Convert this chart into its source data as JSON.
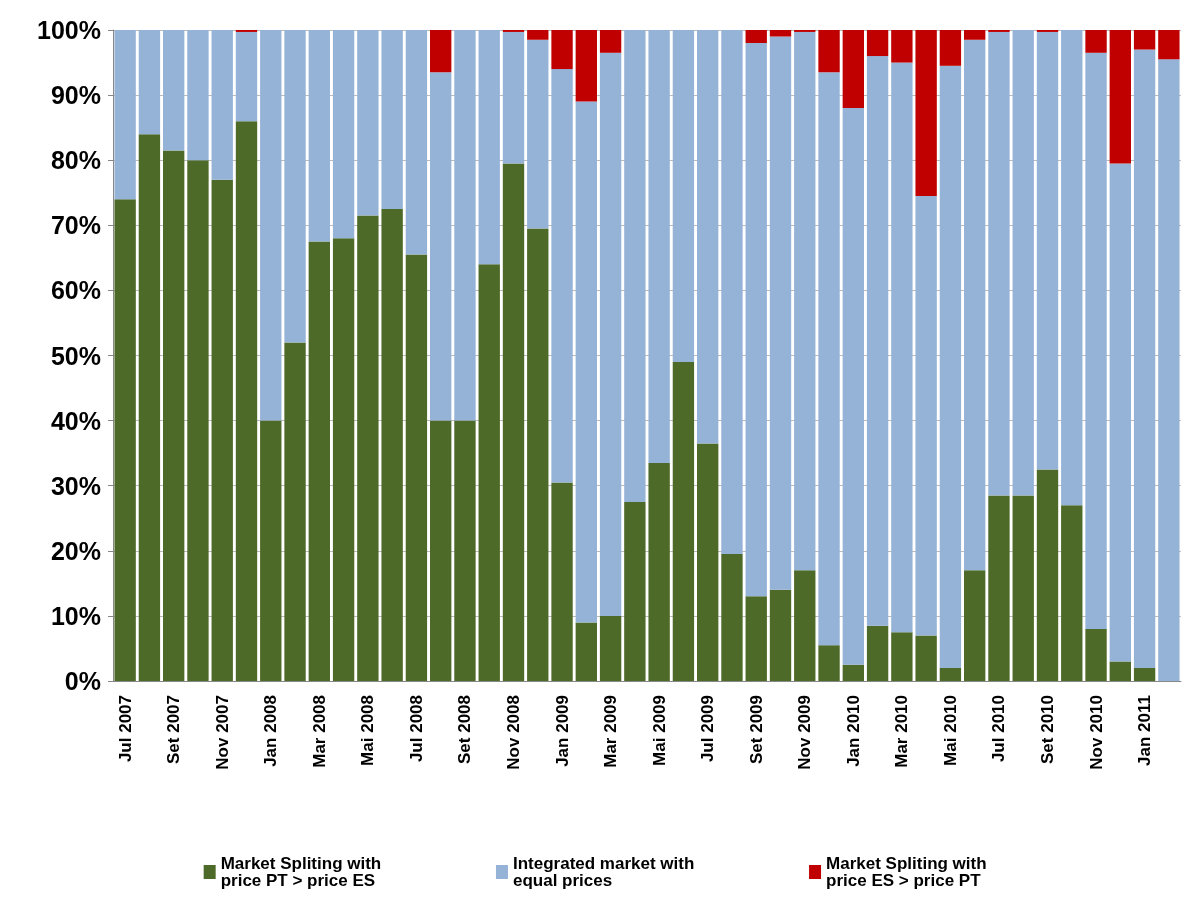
{
  "chart_data": {
    "type": "bar",
    "stacked": true,
    "categories": [
      "Jul 2007",
      null,
      "Set 2007",
      null,
      "Nov 2007",
      null,
      "Jan 2008",
      null,
      "Mar 2008",
      null,
      "Mai 2008",
      null,
      "Jul 2008",
      null,
      "Set 2008",
      null,
      "Nov 2008",
      null,
      "Jan 2009",
      null,
      "Mar 2009",
      null,
      "Mai 2009",
      null,
      "Jul 2009",
      null,
      "Set 2009",
      null,
      "Nov 2009",
      null,
      "Jan 2010",
      null,
      "Mar 2010",
      null,
      "Mai 2010",
      null,
      "Jul 2010",
      null,
      "Set 2010",
      null,
      "Nov 2010",
      null,
      "Jan 2011",
      null
    ],
    "series": [
      {
        "name": "Market Spliting with price PT > price ES",
        "color": "#4e6a28",
        "values": [
          74,
          84,
          81.5,
          80,
          77,
          86,
          40,
          52,
          67.5,
          68,
          71.5,
          72.5,
          65.5,
          40,
          40,
          64,
          79.5,
          69.5,
          30.5,
          9,
          10,
          27.5,
          33.5,
          49,
          36.5,
          19.5,
          13,
          14,
          17,
          5.5,
          2.5,
          8.5,
          7.5,
          7,
          2,
          17,
          28.5,
          28.5,
          32.5,
          27,
          8,
          3,
          2,
          0
        ]
      },
      {
        "name": "Integrated market with equal prices",
        "color": "#95b3d7",
        "values": [
          26,
          16,
          18.5,
          20,
          23,
          13.7,
          60,
          48,
          32.5,
          32,
          28.5,
          27.5,
          34.5,
          53.5,
          60,
          36,
          20.2,
          29,
          63.5,
          80,
          86.5,
          72.5,
          66.5,
          51,
          63.5,
          80.5,
          85,
          85,
          82.7,
          88,
          85.5,
          87.5,
          87.5,
          67.5,
          92.5,
          81.5,
          71.2,
          71.5,
          67.2,
          73,
          88.5,
          76.5,
          95,
          95.5
        ]
      },
      {
        "name": "Market Spliting with price ES > price PT",
        "color": "#c00000",
        "values": [
          0,
          0,
          0,
          0,
          0,
          0.3,
          0,
          0,
          0,
          0,
          0,
          0,
          0,
          6.5,
          0,
          0,
          0.3,
          1.5,
          6,
          11,
          3.5,
          0,
          0,
          0,
          0,
          0,
          2,
          1,
          0.3,
          6.5,
          12,
          4,
          5,
          25.5,
          5.5,
          1.5,
          0.3,
          0,
          0.3,
          0,
          3.5,
          20.5,
          3,
          4.5
        ]
      }
    ],
    "ylim": [
      0,
      100
    ],
    "yticks": [
      {
        "value": 0,
        "label": "0%"
      },
      {
        "value": 10,
        "label": "10%"
      },
      {
        "value": 20,
        "label": "20%"
      },
      {
        "value": 30,
        "label": "30%"
      },
      {
        "value": 40,
        "label": "40%"
      },
      {
        "value": 50,
        "label": "50%"
      },
      {
        "value": 60,
        "label": "60%"
      },
      {
        "value": 70,
        "label": "70%"
      },
      {
        "value": 80,
        "label": "80%"
      },
      {
        "value": 90,
        "label": "90%"
      },
      {
        "value": 100,
        "label": "100%"
      }
    ],
    "grid": "y",
    "legend": "bottom"
  }
}
